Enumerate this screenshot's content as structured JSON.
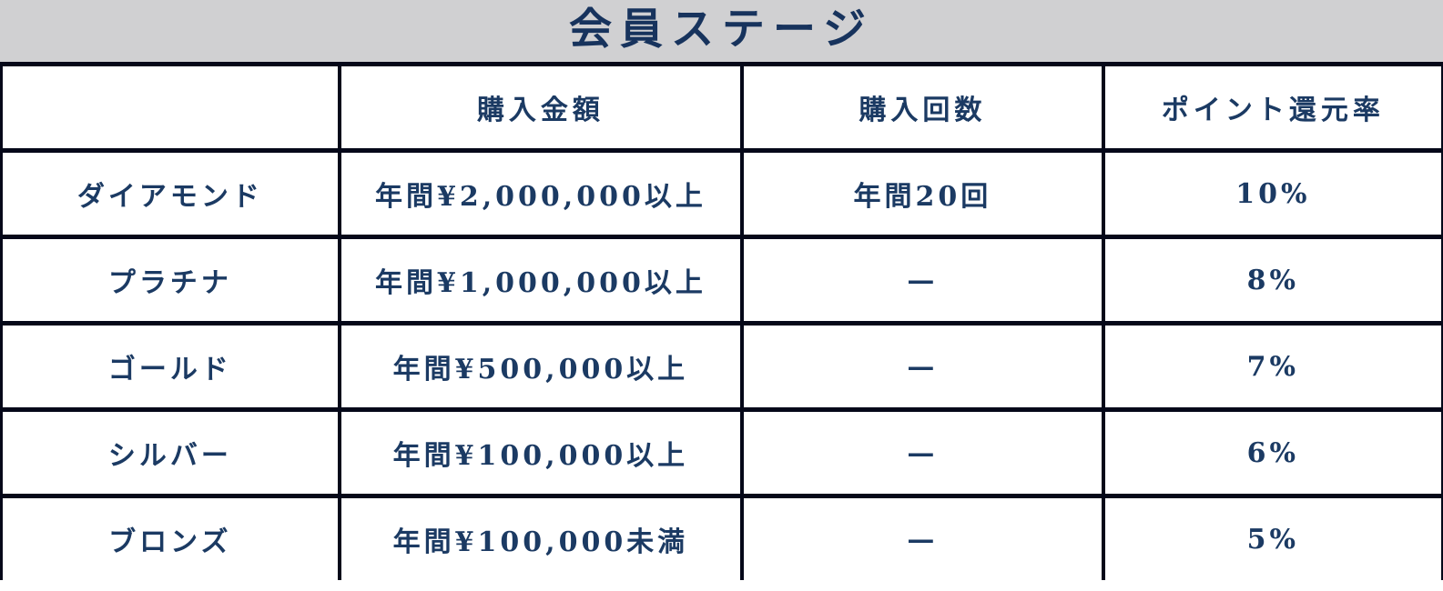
{
  "page": {
    "title": "会員ステージ"
  },
  "colors": {
    "title_bar_bg": "#d0d0d2",
    "text_navy": "#1b3a63",
    "border_dark": "#050819",
    "cell_bg": "#ffffff"
  },
  "table": {
    "columns": [
      "",
      "購入金額",
      "購入回数",
      "ポイント還元率"
    ],
    "rows": [
      {
        "stage": "ダイアモンド",
        "purchase_amount": "年間¥2,000,000以上",
        "purchase_count": "年間20回",
        "point_rate": "10%"
      },
      {
        "stage": "プラチナ",
        "purchase_amount": "年間¥1,000,000以上",
        "purchase_count": "—",
        "point_rate": "8%"
      },
      {
        "stage": "ゴールド",
        "purchase_amount": "年間¥500,000以上",
        "purchase_count": "—",
        "point_rate": "7%"
      },
      {
        "stage": "シルバー",
        "purchase_amount": "年間¥100,000以上",
        "purchase_count": "—",
        "point_rate": "6%"
      },
      {
        "stage": "ブロンズ",
        "purchase_amount": "年間¥100,000未満",
        "purchase_count": "—",
        "point_rate": "5%"
      }
    ]
  }
}
